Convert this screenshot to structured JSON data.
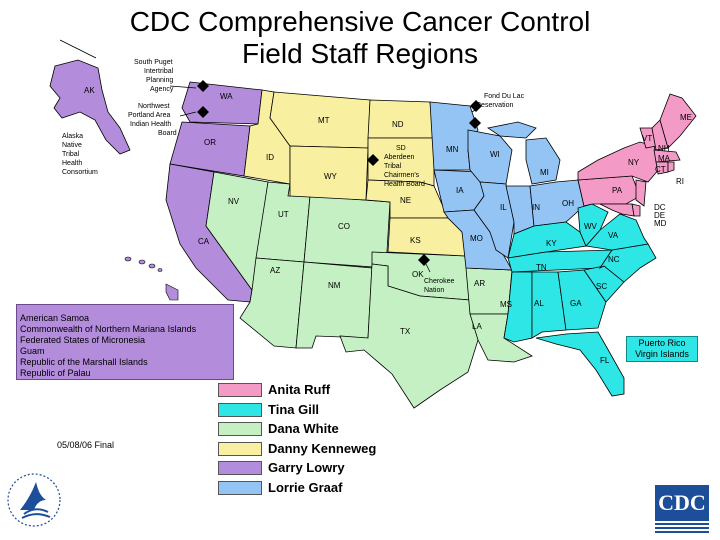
{
  "title": {
    "line1": "CDC Comprehensive Cancer Control",
    "line2": "Field Staff Regions"
  },
  "colors": {
    "anita_ruff": "#f49ac6",
    "tina_gill": "#2ee6e6",
    "dana_white": "#c4f0c4",
    "danny_kenneweg": "#f8f0a0",
    "garry_lowry": "#b48cdc",
    "lorrie_graaf": "#94c4f4"
  },
  "legend": [
    {
      "name": "Anita Ruff",
      "color": "#f49ac6"
    },
    {
      "name": "Tina Gill",
      "color": "#2ee6e6"
    },
    {
      "name": "Dana White",
      "color": "#c4f0c4"
    },
    {
      "name": "Danny Kenneweg",
      "color": "#f8f0a0"
    },
    {
      "name": "Garry Lowry",
      "color": "#b48cdc"
    },
    {
      "name": "Lorrie Graaf",
      "color": "#94c4f4"
    }
  ],
  "tribal_notes": {
    "south_puget": [
      "South Puget",
      "Intertribal",
      "Planning",
      "Agency"
    ],
    "northwest_portland": [
      "Northwest",
      "Portland Area",
      "Indian Health",
      "Board"
    ],
    "alaska": [
      "Alaska",
      "Native",
      "Tribal",
      "Health",
      "Consortium"
    ],
    "fond_du_lac": [
      "Fond Du Lac",
      "Reservation"
    ],
    "aberdeen": [
      "SD",
      "Aberdeen",
      "Tribal",
      "Chairmen's",
      "Health Board"
    ],
    "cherokee": [
      "Cherokee",
      "Nation"
    ]
  },
  "states": {
    "AK": "AK",
    "WA": "WA",
    "OR": "OR",
    "CA": "CA",
    "NV": "NV",
    "ID": "ID",
    "MT": "MT",
    "WY": "WY",
    "UT": "UT",
    "CO": "CO",
    "AZ": "AZ",
    "NM": "NM",
    "ND": "ND",
    "NE": "NE",
    "KS": "KS",
    "OK": "OK",
    "TX": "TX",
    "MN": "MN",
    "IA": "IA",
    "MO": "MO",
    "AR": "AR",
    "LA": "LA",
    "WI": "WI",
    "IL": "IL",
    "MI": "MI",
    "IN": "IN",
    "OH": "OH",
    "KY": "KY",
    "TN": "TN",
    "MS": "MS",
    "AL": "AL",
    "GA": "GA",
    "FL": "FL",
    "SC": "SC",
    "NC": "NC",
    "VA": "VA",
    "WV": "WV",
    "PA": "PA",
    "NY": "NY",
    "VT": "VT",
    "NH": "NH",
    "ME": "ME",
    "MA": "MA",
    "CT": "CT",
    "RI": "RI",
    "DC": "DC",
    "DE": "DE",
    "MD": "MD"
  },
  "territories": [
    "American Samoa",
    "Commonwealth of Northern Mariana Islands",
    "Federated States of Micronesia",
    "Guam",
    "Republic of the Marshall Islands",
    "Republic of Palau"
  ],
  "caribbean": [
    "Puerto Rico",
    "Virgin Islands"
  ],
  "date_note": "05/08/06 Final",
  "logo": {
    "cdc_text": "CDC"
  },
  "icons": {
    "hhs": "hhs-eagle-icon",
    "cdc": "cdc-logo-icon",
    "tribe_marker": "diamond-marker-icon"
  }
}
